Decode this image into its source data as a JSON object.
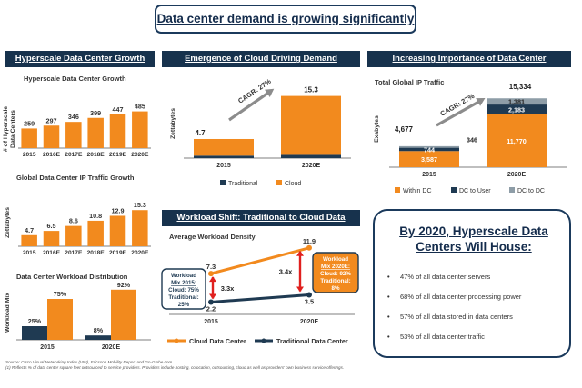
{
  "main_title": "Data center demand is growing significantly",
  "headers": {
    "left": "Hyperscale Data Center Growth",
    "middle": "Emergence of Cloud Driving Demand",
    "right": "Increasing Importance of Data Center Ecosystems",
    "workload": "Workload Shift: Traditional to Cloud Data Centers"
  },
  "colors": {
    "navy": "#17324d",
    "orange": "#f28a1e",
    "dark": "#1f3a52",
    "grey": "#8e9da7",
    "arrow": "#8c8c8c",
    "red": "#e0201e"
  },
  "callout": {
    "title": "By 2020, Hyperscale Data Centers Will House:",
    "bullets": [
      "47% of all data center servers",
      "68% of all data center processing power",
      "57% of all data stored in data centers",
      "53% of all data center traffic"
    ]
  },
  "footnote": {
    "source": "Source: Cisco Visual Networking Index (VNI), Ericsson Mobility Report and Go-Globe.com",
    "note": "(1)   Reflects % of data center square feet outsourced to service providers. Providers include hosting, colocation, outsourcing, cloud as well as providers' own business service offerings."
  },
  "chart_data": [
    {
      "id": "hyperscale",
      "type": "bar",
      "title": "Hyperscale Data Center Growth",
      "ylabel": "# of Hyperscale Data Centers",
      "categories": [
        "2015",
        "2016E",
        "2017E",
        "2018E",
        "2019E",
        "2020E"
      ],
      "values": [
        259,
        297,
        346,
        399,
        447,
        485
      ],
      "ylim": [
        0,
        600
      ]
    },
    {
      "id": "ip_traffic",
      "type": "bar",
      "title": "Global Data Center IP Traffic Growth",
      "ylabel": "Zettabytes",
      "categories": [
        "2015",
        "2016E",
        "2017E",
        "2018E",
        "2019E",
        "2020E"
      ],
      "values": [
        4.7,
        6.5,
        8.6,
        10.8,
        12.9,
        15.3
      ],
      "ylim": [
        0,
        20
      ]
    },
    {
      "id": "workload_mix",
      "type": "bar",
      "title": "Data Center Workload Distribution",
      "ylabel": "Workload Mix",
      "categories": [
        "2015",
        "2020E"
      ],
      "series": [
        {
          "name": "Traditional",
          "values": [
            25,
            8
          ]
        },
        {
          "name": "Cloud",
          "values": [
            75,
            92
          ]
        }
      ],
      "value_suffix": "%",
      "ylim": [
        0,
        100
      ]
    },
    {
      "id": "cloud_demand",
      "type": "bar",
      "stacked": true,
      "ylabel": "Zettabytes",
      "categories": [
        "2015",
        "2020E"
      ],
      "series": [
        {
          "name": "Traditional",
          "values": [
            0.6,
            0.8
          ]
        },
        {
          "name": "Cloud",
          "values": [
            4.1,
            14.5
          ]
        }
      ],
      "totals": [
        4.7,
        15.3
      ],
      "cagr_label": "CAGR: 27%",
      "ylim": [
        0,
        17
      ]
    },
    {
      "id": "ecosystem",
      "type": "bar",
      "stacked": true,
      "title": "Total Global IP Traffic",
      "ylabel": "Exabytes",
      "categories": [
        "2015",
        "2020E"
      ],
      "series": [
        {
          "name": "Within DC",
          "values": [
            3587,
            11770
          ]
        },
        {
          "name": "DC to User",
          "values": [
            744,
            2183
          ]
        },
        {
          "name": "DC to DC",
          "values": [
            346,
            1381
          ]
        }
      ],
      "totals": [
        4677,
        15334
      ],
      "cagr_label": "CAGR: 27%",
      "ylim": [
        0,
        17000
      ]
    },
    {
      "id": "workload_density",
      "type": "line",
      "title": "Average Workload Density",
      "x": [
        "2015",
        "2020E"
      ],
      "series": [
        {
          "name": "Cloud Data Center",
          "values": [
            7.3,
            11.9
          ]
        },
        {
          "name": "Traditional Data Center",
          "values": [
            2.2,
            3.5
          ]
        }
      ],
      "ylim": [
        0,
        13
      ],
      "multiples": [
        "3.3x",
        "3.4x"
      ],
      "annotations": [
        {
          "lines": [
            "Workload",
            "Mix 2015:",
            "Cloud: 75%",
            "Traditional:",
            "25%"
          ]
        },
        {
          "lines": [
            "Workload",
            "Mix 2020E:",
            "Cloud: 92%",
            "Traditional:",
            "8%"
          ]
        }
      ]
    }
  ]
}
